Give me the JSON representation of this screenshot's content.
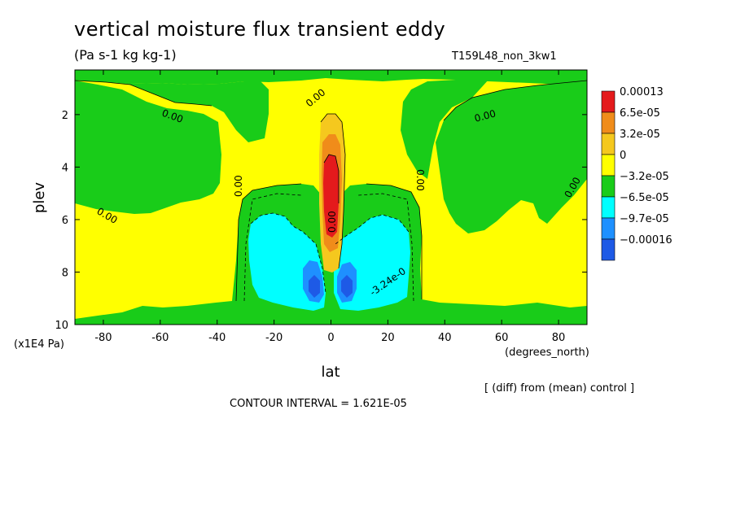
{
  "header": {
    "title": "vertical moisture flux transient eddy",
    "units": "(Pa s-1 kg kg-1)",
    "run_name": "T159L48_non_3kw1"
  },
  "footer": {
    "diff_note": "[ (diff) from (mean) control ]",
    "contour_interval": "CONTOUR INTERVAL = 1.621E-05"
  },
  "chart_data": {
    "type": "heatmap",
    "title": "vertical moisture flux transient eddy",
    "subtitle": "(Pa s-1 kg kg-1)",
    "xlabel": "lat",
    "xunits": "(degrees_north)",
    "ylabel": "plev",
    "yunits": "(x1E4 Pa)",
    "xlim": [
      -90,
      90
    ],
    "ylim": [
      10,
      0.3
    ],
    "y_inverted": true,
    "x_ticks": [
      -80,
      -60,
      -40,
      -20,
      0,
      20,
      40,
      60,
      80
    ],
    "y_ticks": [
      2,
      4,
      6,
      8,
      10
    ],
    "legend": {
      "position": "right",
      "levels": [
        {
          "label": "0.00013",
          "color": "#e41a1c"
        },
        {
          "label": "6.5e-05",
          "color": "#f08c1a"
        },
        {
          "label": "3.2e-05",
          "color": "#f5c81e"
        },
        {
          "label": "0",
          "color": "#ffff00"
        },
        {
          "label": "−3.2e-05",
          "color": "#19cc19"
        },
        {
          "label": "−6.5e-05",
          "color": "#00ffff"
        },
        {
          "label": "−9.7e-05",
          "color": "#1e90ff"
        },
        {
          "label": "−0.00016",
          "color": "#1e5ae6"
        }
      ]
    },
    "contour_labels": [
      "0.00",
      "0.00",
      "0.00",
      "0.00",
      "0.00",
      "0.00",
      "0.00",
      "0.00",
      "-3.24e-0"
    ],
    "contour_interval": 1.621e-05,
    "features": [
      {
        "name": "positive-maximum",
        "lat_range": [
          -5,
          5
        ],
        "plev_range": [
          3.2,
          6.5
        ],
        "value": 0.00013
      },
      {
        "name": "negative-lobe-south",
        "lat_range": [
          -28,
          -3
        ],
        "plev_range": [
          5.8,
          9.3
        ],
        "value": -0.0001
      },
      {
        "name": "negative-lobe-north",
        "lat_range": [
          3,
          28
        ],
        "plev_range": [
          5.8,
          9.3
        ],
        "value": -0.0001
      }
    ]
  }
}
